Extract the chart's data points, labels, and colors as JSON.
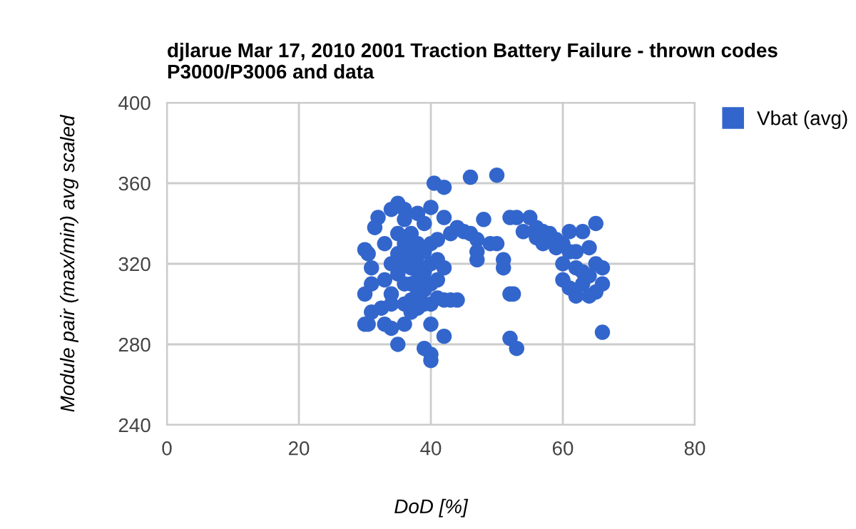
{
  "chart_data": {
    "type": "scatter",
    "title": "djlarue Mar 17, 2010 2001 Traction Battery Failure - thrown codes P3000/P3006 and data",
    "xlabel": "DoD [%]",
    "ylabel": "Module pair (max/min) avg scaled",
    "xlim": [
      0,
      80
    ],
    "xticks": [
      0,
      20,
      40,
      60,
      80
    ],
    "ylim": [
      240,
      400
    ],
    "yticks": [
      240,
      280,
      320,
      360,
      400
    ],
    "grid": true,
    "legend": "top right",
    "marker": "circle",
    "series": [
      {
        "name": "Vbat (avg)",
        "color": "#3366cc",
        "x": [
          30,
          30,
          30.5,
          31,
          31,
          30,
          31.5,
          32,
          33,
          33,
          32.5,
          33,
          34,
          34,
          35,
          35,
          36,
          36,
          36,
          37,
          37,
          37,
          37,
          37,
          37,
          38,
          38,
          38,
          38,
          38,
          38,
          39,
          39,
          39,
          39,
          39,
          39,
          40,
          40,
          40,
          40,
          40,
          40,
          40,
          40,
          41,
          41,
          41,
          41,
          42,
          42,
          42,
          42,
          43,
          43,
          44,
          44,
          45,
          46,
          47,
          34,
          35,
          35,
          35,
          36,
          36,
          36,
          36,
          34,
          34,
          31,
          30.5,
          40.5,
          42,
          46,
          50,
          47,
          48,
          47,
          49,
          50,
          51,
          51,
          52,
          52.5,
          52,
          53,
          52,
          53,
          54,
          55,
          56,
          56,
          57,
          57,
          58,
          59,
          59,
          60,
          61,
          61,
          60,
          60,
          61,
          62,
          62,
          63,
          63,
          63,
          64,
          64,
          65,
          65,
          65,
          66,
          66,
          66,
          64,
          62
        ],
        "values": [
          305,
          327,
          325,
          318,
          310,
          290,
          338,
          343,
          330,
          312,
          298,
          290,
          288,
          347,
          350,
          280,
          347,
          342,
          290,
          335,
          325,
          318,
          310,
          302,
          296,
          345,
          330,
          320,
          312,
          305,
          298,
          340,
          326,
          316,
          307,
          300,
          278,
          272,
          275,
          290,
          300,
          310,
          320,
          330,
          348,
          312,
          322,
          332,
          303,
          302,
          284,
          343,
          318,
          302,
          335,
          302,
          338,
          336,
          335,
          332,
          305,
          315,
          325,
          335,
          300,
          310,
          320,
          330,
          320,
          300,
          296,
          290,
          360,
          358,
          363,
          364,
          326,
          342,
          322,
          330,
          330,
          322,
          318,
          305,
          305,
          283,
          278,
          343,
          343,
          336,
          343,
          338,
          333,
          336,
          330,
          335,
          332,
          328,
          330,
          336,
          326,
          320,
          312,
          308,
          318,
          326,
          316,
          336,
          310,
          314,
          328,
          340,
          320,
          306,
          310,
          318,
          286,
          304,
          304
        ]
      }
    ]
  }
}
